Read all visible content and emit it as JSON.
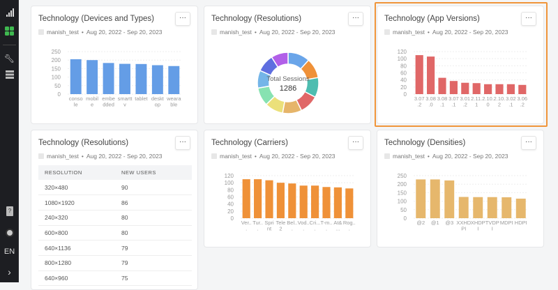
{
  "sidebar": {
    "items": [
      {
        "icon": "analytics-icon"
      },
      {
        "icon": "dashboard-grid-icon",
        "active_color": "#3fb950"
      },
      {
        "icon": "wrench-icon"
      },
      {
        "icon": "database-icon"
      },
      {
        "icon": "help-icon"
      },
      {
        "icon": "avatar"
      }
    ],
    "language": "EN",
    "expand": "›"
  },
  "meta": {
    "user": "manish_test",
    "sep": "•",
    "range": "Aug 20, 2022 - Sep 20, 2023"
  },
  "more_label": "···",
  "cards": {
    "devices": {
      "title": "Technology (Devices and Types)"
    },
    "resolutions_donut": {
      "title": "Technology (Resolutions)",
      "center_label": "Total Sessions",
      "center_value": "1286"
    },
    "app_versions": {
      "title": "Technology (App Versions)"
    },
    "resolutions_table": {
      "title": "Technology (Resolutions)",
      "columns": [
        "RESOLUTION",
        "NEW USERS"
      ],
      "rows": [
        [
          "320×480",
          "90"
        ],
        [
          "1080×1920",
          "86"
        ],
        [
          "240×320",
          "80"
        ],
        [
          "600×800",
          "80"
        ],
        [
          "640×1136",
          "79"
        ],
        [
          "800×1280",
          "79"
        ],
        [
          "640×960",
          "75"
        ]
      ]
    },
    "carriers": {
      "title": "Technology (Carriers)"
    },
    "densities": {
      "title": "Technology (Densities)"
    }
  },
  "chart_data": [
    {
      "id": "devices",
      "type": "bar",
      "color": "#649de6",
      "ylim": [
        0,
        250
      ],
      "yticks": [
        0,
        50,
        100,
        150,
        200,
        250
      ],
      "grid": true,
      "categories": [
        [
          "conso",
          "le"
        ],
        [
          "mobil",
          "e"
        ],
        [
          "embe",
          "dded"
        ],
        [
          "smartt",
          "v"
        ],
        [
          "tablet",
          ""
        ],
        [
          "deskt",
          "op"
        ],
        [
          "weara",
          "ble"
        ]
      ],
      "values": [
        205,
        200,
        183,
        178,
        177,
        170,
        165
      ]
    },
    {
      "id": "resolutions_donut",
      "type": "pie",
      "donut": true,
      "colors": [
        "#6aa5e9",
        "#ef9138",
        "#4dbdb0",
        "#e06767",
        "#e6b56a",
        "#ebe07a",
        "#87e2b1",
        "#74b5e8",
        "#5e6ee0",
        "#b15fe8"
      ],
      "values": [
        150,
        135,
        135,
        130,
        130,
        125,
        125,
        120,
        120,
        116
      ]
    },
    {
      "id": "app_versions",
      "type": "bar",
      "color": "#e06767",
      "ylim": [
        0,
        120
      ],
      "yticks": [
        0,
        20,
        40,
        60,
        80,
        100,
        120
      ],
      "grid": true,
      "categories": [
        [
          "3.07",
          ".2"
        ],
        [
          "3.08",
          ".0"
        ],
        [
          "3.08",
          ".1"
        ],
        [
          "3.07",
          ".1"
        ],
        [
          "3.01",
          ".2"
        ],
        [
          "2.11.",
          "1"
        ],
        [
          "2.10.",
          "0"
        ],
        [
          "2.10.",
          "2"
        ],
        [
          "3.02",
          ".1"
        ],
        [
          "3.06",
          ".2"
        ]
      ],
      "values": [
        110,
        106,
        46,
        37,
        32,
        31,
        28,
        28,
        28,
        26
      ]
    },
    {
      "id": "carriers",
      "type": "bar",
      "color": "#ef9138",
      "ylim": [
        0,
        120
      ],
      "yticks": [
        0,
        20,
        40,
        60,
        80,
        100,
        120
      ],
      "grid": true,
      "categories": [
        [
          "Ver..",
          "."
        ],
        [
          "Tur..",
          "."
        ],
        [
          "Spri",
          "nt"
        ],
        [
          "Tele",
          "2"
        ],
        [
          "Bel..",
          "."
        ],
        [
          "Vod..",
          "."
        ],
        [
          "Cri...",
          "."
        ],
        [
          "T-m..",
          "."
        ],
        [
          "At&",
          "..."
        ],
        [
          "Rog..",
          "."
        ]
      ],
      "values": [
        110,
        110,
        107,
        100,
        98,
        92,
        92,
        88,
        87,
        84
      ]
    },
    {
      "id": "densities",
      "type": "bar",
      "color": "#e6b76c",
      "ylim": [
        0,
        250
      ],
      "yticks": [
        0,
        50,
        100,
        150,
        200,
        250
      ],
      "grid": true,
      "categories": [
        [
          "@2",
          ""
        ],
        [
          "@1",
          ""
        ],
        [
          "@3",
          ""
        ],
        [
          "XXHD",
          "PI"
        ],
        [
          "XHDP",
          "I"
        ],
        [
          "TVDP",
          "I"
        ],
        [
          "MDPI",
          ""
        ],
        [
          "HDPI",
          ""
        ]
      ],
      "values": [
        228,
        228,
        222,
        125,
        124,
        124,
        123,
        115
      ]
    }
  ]
}
